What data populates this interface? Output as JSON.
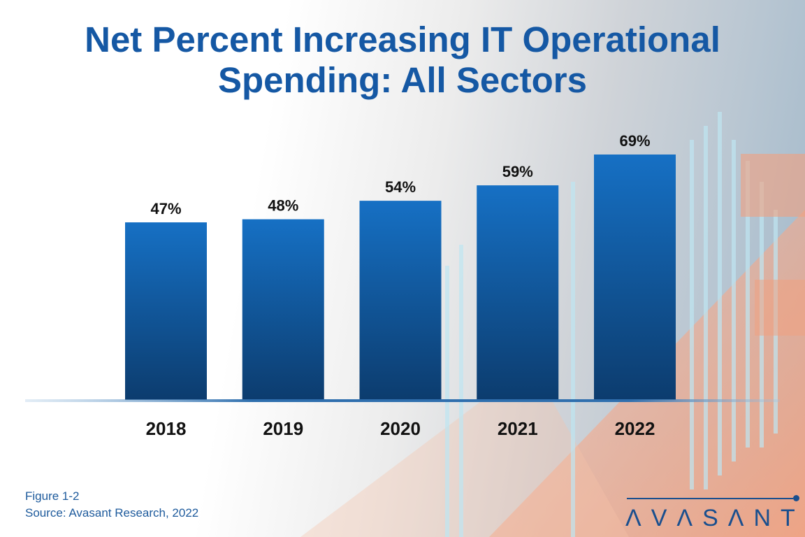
{
  "chart_data": {
    "type": "bar",
    "title": "Net Percent Increasing IT Operational Spending: All Sectors",
    "categories": [
      "2018",
      "2019",
      "2020",
      "2021",
      "2022"
    ],
    "values": [
      47,
      48,
      54,
      59,
      69
    ],
    "data_labels": [
      "47%",
      "48%",
      "54%",
      "59%",
      "69%"
    ],
    "xlabel": "",
    "ylabel": "",
    "grid": false,
    "bar_color": "#1565b4"
  },
  "title_lines": [
    "Net Percent Increasing IT Operational",
    "Spending: All Sectors"
  ],
  "footer": {
    "figure": "Figure 1-2",
    "source": "Source: Avasant Research, 2022"
  },
  "logo": {
    "text": "AVASANT",
    "color": "#1a4f8e"
  }
}
